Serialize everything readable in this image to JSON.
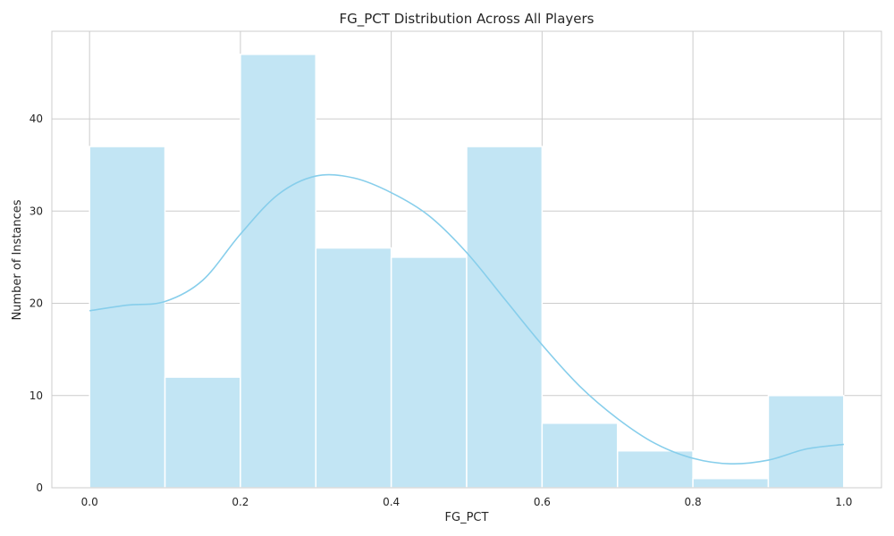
{
  "chart_data": {
    "type": "bar",
    "title": "FG_PCT Distribution Across All Players",
    "xlabel": "FG_PCT",
    "ylabel": "Number of Instances",
    "bin_edges": [
      0.0,
      0.1,
      0.2,
      0.3,
      0.4,
      0.5,
      0.6,
      0.7,
      0.8,
      0.9,
      1.0
    ],
    "values": [
      37,
      12,
      47,
      26,
      25,
      37,
      7,
      4,
      1,
      10
    ],
    "xlim": [
      -0.05,
      1.05
    ],
    "ylim": [
      0,
      49.5
    ],
    "xticks": [
      "0.0",
      "0.2",
      "0.4",
      "0.6",
      "0.8",
      "1.0"
    ],
    "yticks": [
      "0",
      "10",
      "20",
      "30",
      "40"
    ],
    "kde": {
      "x": [
        0.0,
        0.05,
        0.1,
        0.15,
        0.2,
        0.25,
        0.3,
        0.35,
        0.4,
        0.45,
        0.5,
        0.55,
        0.6,
        0.65,
        0.7,
        0.75,
        0.8,
        0.85,
        0.9,
        0.95,
        1.0
      ],
      "y": [
        19.2,
        19.8,
        20.2,
        22.5,
        27.5,
        31.8,
        33.8,
        33.6,
        32.0,
        29.5,
        25.5,
        20.5,
        15.5,
        11.0,
        7.5,
        4.8,
        3.2,
        2.6,
        3.0,
        4.2,
        4.7
      ]
    },
    "grid": true,
    "colors": {
      "bar": "#c2e5f4",
      "bar_edge": "#ffffff",
      "kde": "#87ceeb"
    }
  }
}
